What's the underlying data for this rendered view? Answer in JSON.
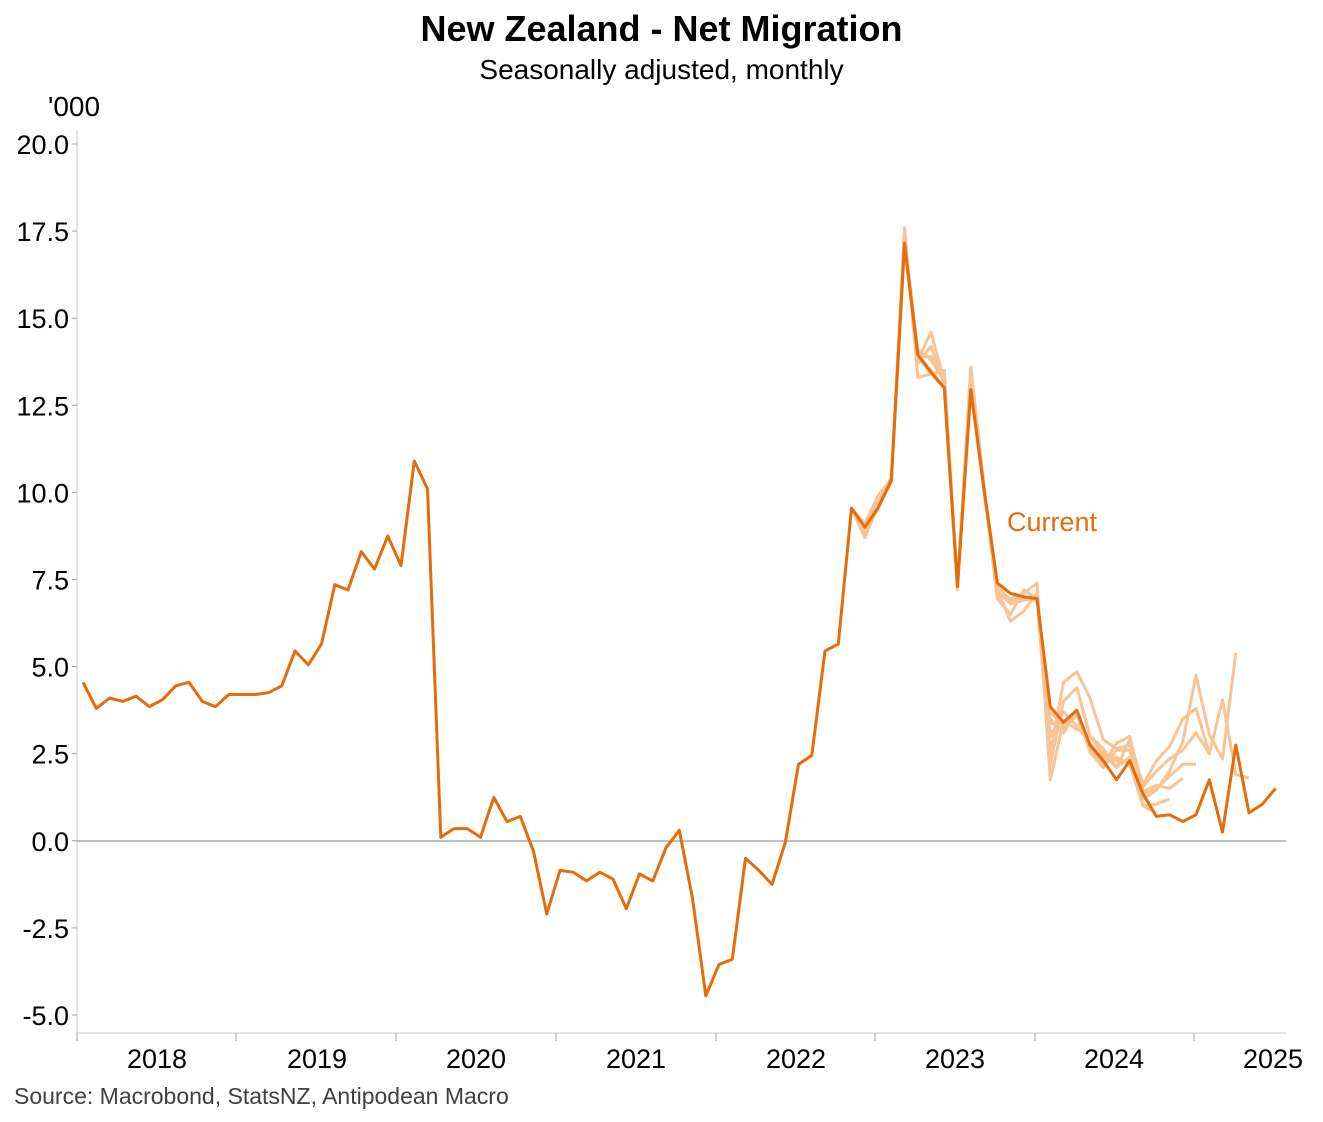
{
  "chart_data": {
    "type": "line",
    "title": "New Zealand - Net Migration",
    "subtitle": "Seasonally adjusted, monthly",
    "ylabel": "'000",
    "source": "Source: Macrobond, StatsNZ, Antipodean Macro",
    "ylim": [
      -5.0,
      20.0
    ],
    "y_ticks": [
      "20.0",
      "17.5",
      "15.0",
      "12.5",
      "10.0",
      "7.5",
      "5.0",
      "2.5",
      "0.0",
      "-2.5",
      "-5.0"
    ],
    "x_ticks": [
      "2018",
      "2019",
      "2020",
      "2021",
      "2022",
      "2023",
      "2024",
      "2025"
    ],
    "x_start": "2017-09",
    "grid": false,
    "annotation": "Current",
    "colors": {
      "current": "#E46C0A",
      "vintage": "#F8C495",
      "zero_line": "#808080",
      "axis": "#C8C8C8"
    },
    "series": [
      {
        "name": "Current",
        "values": [
          4.55,
          3.8,
          4.1,
          4.0,
          4.15,
          3.85,
          4.05,
          4.45,
          4.55,
          4.0,
          3.85,
          4.2,
          4.2,
          4.2,
          4.25,
          4.45,
          5.45,
          5.05,
          5.65,
          7.35,
          7.2,
          8.3,
          7.8,
          8.75,
          7.9,
          10.9,
          10.1,
          0.1,
          0.35,
          0.35,
          0.1,
          1.25,
          0.55,
          0.7,
          -0.3,
          -2.1,
          -0.85,
          -0.9,
          -1.15,
          -0.9,
          -1.1,
          -1.95,
          -0.95,
          -1.15,
          -0.2,
          0.3,
          -1.65,
          -4.45,
          -3.55,
          -3.4,
          -0.5,
          -0.85,
          -1.25,
          -0.05,
          2.2,
          2.45,
          5.45,
          5.65,
          9.55,
          9.0,
          9.55,
          10.35,
          17.15,
          13.95,
          13.45,
          13.0,
          7.3,
          12.95,
          10.1,
          7.4,
          7.1,
          7.0,
          6.95,
          3.85,
          3.4,
          3.75,
          2.75,
          2.3,
          1.75,
          2.3,
          1.35,
          0.7,
          0.75,
          0.55,
          0.75,
          1.75,
          0.25,
          2.75,
          0.8,
          1.05,
          1.5
        ]
      },
      {
        "name": "",
        "start": 58,
        "values": [
          9.55,
          8.85,
          9.55,
          10.3,
          17.6,
          13.3,
          13.4,
          13.5,
          7.2,
          13.6,
          10.2,
          7.0,
          6.95,
          7.1,
          7.4,
          1.75,
          3.45,
          3.2,
          3.0,
          2.5,
          2.1,
          2.4,
          1.2,
          1.45,
          2.0,
          2.85,
          4.75,
          3.05,
          2.35,
          5.4
        ]
      },
      {
        "name": "",
        "start": 58,
        "values": [
          9.55,
          9.1,
          9.9,
          10.4,
          17.4,
          13.8,
          14.6,
          13.2,
          7.4,
          13.55,
          10.05,
          7.2,
          6.3,
          6.6,
          7.1,
          2.5,
          4.55,
          4.85,
          4.1,
          2.9,
          2.65,
          2.75,
          1.55,
          2.0,
          2.35,
          2.6,
          3.1,
          2.5,
          4.05,
          1.9,
          1.8
        ]
      },
      {
        "name": "",
        "start": 58,
        "values": [
          9.55,
          8.7,
          9.6,
          10.4,
          17.2,
          13.7,
          14.2,
          13.1,
          7.25,
          13.2,
          10.1,
          6.95,
          6.5,
          7.2,
          6.95,
          2.2,
          4.0,
          4.4,
          3.0,
          2.65,
          2.1,
          2.9,
          1.6,
          2.3,
          2.7,
          3.5,
          3.8,
          2.5
        ]
      },
      {
        "name": "",
        "start": 58,
        "values": [
          9.55,
          8.9,
          9.7,
          10.35,
          17.3,
          14.1,
          13.8,
          13.2,
          7.3,
          13.3,
          10.0,
          7.2,
          6.8,
          6.9,
          7.0,
          3.0,
          3.7,
          3.3,
          2.8,
          2.4,
          2.3,
          2.3,
          1.35,
          1.5,
          1.85,
          2.2,
          2.2
        ]
      },
      {
        "name": "",
        "start": 58,
        "values": [
          9.55,
          9.0,
          9.8,
          10.3,
          17.1,
          13.9,
          13.9,
          13.3,
          7.35,
          13.0,
          10.05,
          7.3,
          6.9,
          6.95,
          6.95,
          3.4,
          3.2,
          3.6,
          2.7,
          2.2,
          2.8,
          3.0,
          1.4,
          1.6,
          1.5,
          1.8
        ]
      },
      {
        "name": "",
        "start": 58,
        "values": [
          9.55,
          9.05,
          9.6,
          10.4,
          17.1,
          13.95,
          13.5,
          13.0,
          7.3,
          12.95,
          10.1,
          7.4,
          7.1,
          7.0,
          6.9,
          3.5,
          3.1,
          3.7,
          2.55,
          2.1,
          2.6,
          2.6,
          1.0,
          1.05,
          1.2
        ]
      },
      {
        "name": "",
        "start": 58,
        "values": [
          9.55,
          9.0,
          9.55,
          10.35,
          17.1,
          13.9,
          13.4,
          13.0,
          7.3,
          12.95,
          10.1,
          7.4,
          7.1,
          7.0,
          6.9,
          3.7,
          3.3,
          3.6,
          2.6,
          2.2,
          2.4,
          2.2,
          1.0,
          0.8
        ]
      }
    ]
  }
}
